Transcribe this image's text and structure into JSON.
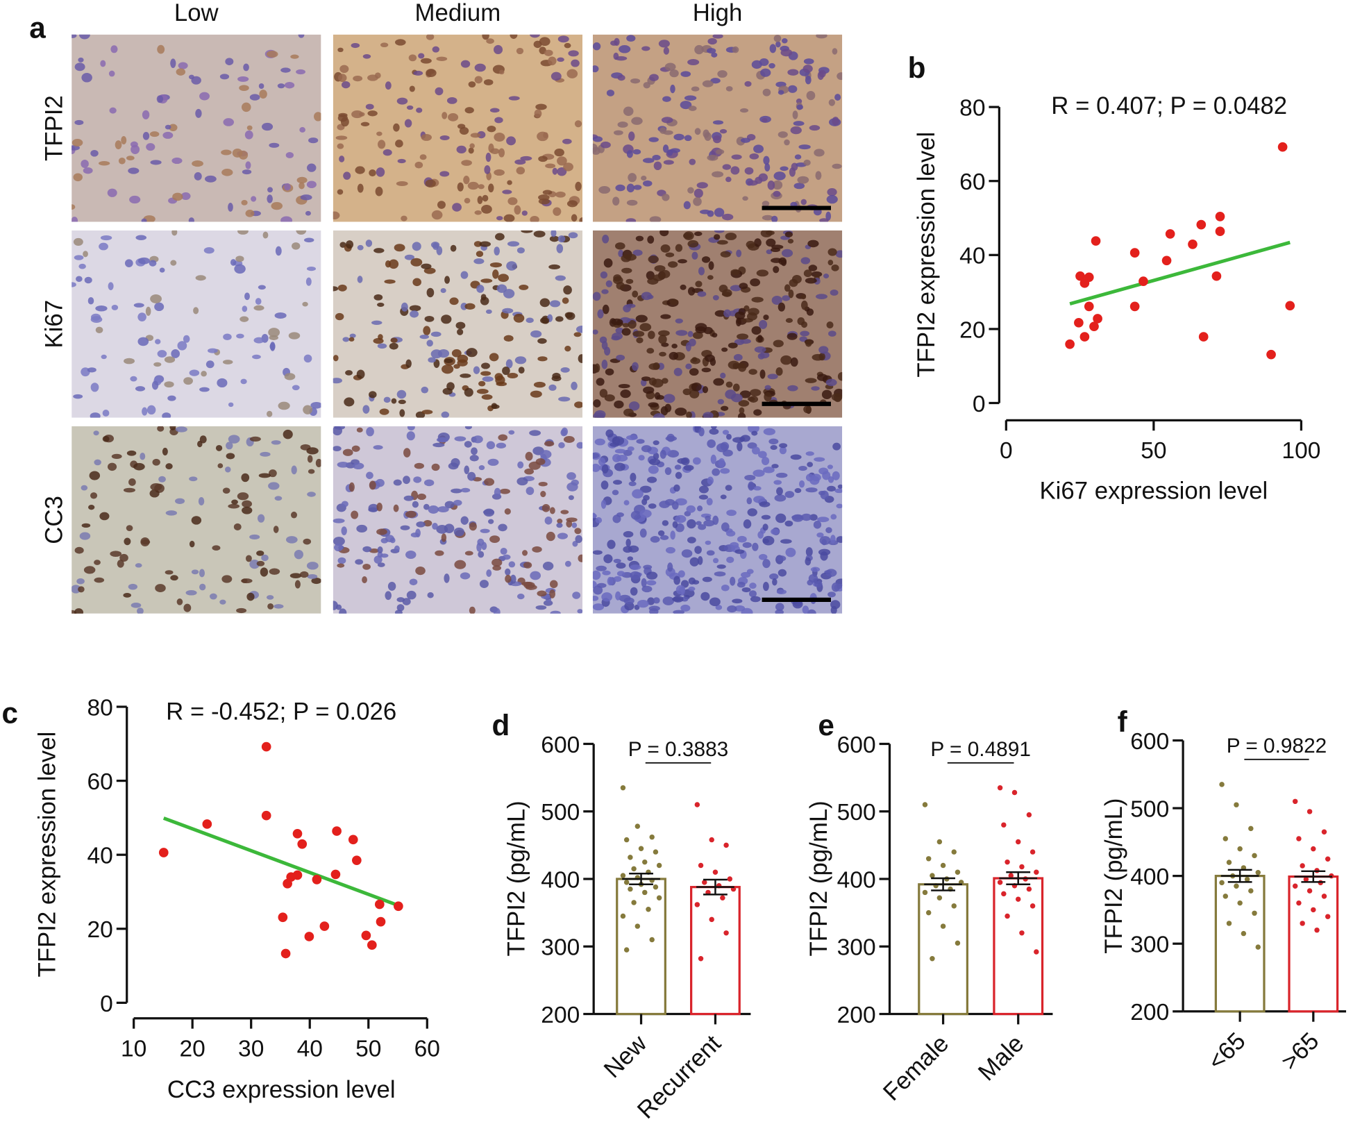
{
  "figure_a": {
    "label": "a",
    "columns": [
      "Low",
      "Medium",
      "High"
    ],
    "rows": [
      "TFPI2",
      "Ki67",
      "CC3"
    ]
  },
  "chart_data": [
    {
      "label": "b",
      "type": "scatter",
      "annotation": "R = 0.407; P = 0.0482",
      "x_label": "Ki67 expression level",
      "y_label": "TFPI2 expression level",
      "x": [
        93.7,
        72.5,
        72.5,
        66.1,
        63.2,
        55.6,
        54.4,
        71.3,
        46.5,
        43.6,
        43.6,
        30.4,
        28.1,
        25.1,
        26.6,
        28.1,
        31.0,
        24.6,
        26.6,
        29.8,
        21.6,
        66.9,
        89.8,
        96.2
      ],
      "y": [
        69.2,
        50.4,
        46.4,
        48.2,
        42.9,
        45.7,
        38.5,
        34.3,
        32.9,
        40.6,
        26.1,
        43.8,
        34.0,
        34.3,
        32.4,
        26.1,
        22.8,
        21.7,
        17.9,
        20.7,
        15.9,
        17.9,
        13.1,
        26.3
      ],
      "color": "#e3201c",
      "trend_line": {
        "x": [
          21.6,
          96.2
        ],
        "y": [
          26.8,
          43.4
        ],
        "color": "#3cb83a"
      },
      "xlim": [
        0,
        100
      ],
      "xticks": [
        0,
        50,
        100
      ],
      "ylim": [
        0,
        80
      ],
      "yticks": [
        0,
        20,
        40,
        60,
        80
      ]
    },
    {
      "label": "c",
      "type": "scatter",
      "annotation": "R = -0.452; P = 0.026",
      "x_label": "CC3 expression level",
      "y_label": "TFPI2 expression level",
      "x": [
        15.1,
        22.5,
        32.6,
        32.6,
        37.9,
        38.7,
        44.6,
        47.4,
        48.0,
        36.8,
        37.9,
        36.2,
        41.2,
        44.4,
        35.4,
        39.9,
        42.5,
        51.9,
        55.1,
        52.1,
        49.6,
        50.6,
        35.9
      ],
      "y": [
        40.6,
        48.3,
        69.2,
        50.6,
        45.7,
        42.9,
        46.4,
        44.1,
        38.5,
        34.0,
        34.5,
        32.2,
        33.3,
        34.7,
        23.1,
        17.9,
        20.7,
        26.6,
        26.1,
        21.9,
        18.2,
        15.6,
        13.3
      ],
      "color": "#e3201c",
      "trend_line": {
        "x": [
          15.1,
          55.1
        ],
        "y": [
          49.9,
          26.3
        ],
        "color": "#3cb83a"
      },
      "xlim": [
        10,
        60
      ],
      "xticks": [
        10,
        20,
        30,
        40,
        50,
        60
      ],
      "ylim": [
        0,
        80
      ],
      "yticks": [
        0,
        20,
        40,
        60,
        80
      ]
    },
    {
      "label": "d",
      "type": "bar",
      "annotation": "P = 0.3883",
      "y_label": "TFPI2 (pg/mL)",
      "categories": [
        "New",
        "Recurrent"
      ],
      "colors": [
        "#857a3c",
        "#d9242b"
      ],
      "values": [
        400,
        388
      ],
      "errors": [
        8,
        11
      ],
      "points": [
        [
          535,
          478,
          462,
          458,
          445,
          440,
          432,
          425,
          420,
          415,
          410,
          405,
          402,
          398,
          395,
          392,
          388,
          385,
          380,
          372,
          365,
          355,
          345,
          330,
          310,
          295
        ],
        [
          510,
          458,
          450,
          420,
          410,
          400,
          395,
          390,
          385,
          380,
          372,
          362,
          340,
          320,
          282
        ]
      ],
      "ylim": [
        200,
        600
      ],
      "yticks": [
        200,
        300,
        400,
        500,
        600
      ]
    },
    {
      "label": "e",
      "type": "bar",
      "annotation": "P = 0.4891",
      "y_label": "TFPI2 (pg/mL)",
      "categories": [
        "Female",
        "Male"
      ],
      "colors": [
        "#857a3c",
        "#d9242b"
      ],
      "values": [
        392,
        401
      ],
      "errors": [
        9,
        9
      ],
      "points": [
        [
          510,
          455,
          440,
          430,
          420,
          410,
          405,
          400,
          395,
          390,
          385,
          380,
          372,
          360,
          350,
          330,
          305,
          282
        ],
        [
          535,
          528,
          495,
          480,
          455,
          440,
          425,
          418,
          410,
          405,
          400,
          395,
          390,
          385,
          378,
          370,
          360,
          345,
          320,
          292
        ]
      ],
      "ylim": [
        200,
        600
      ],
      "yticks": [
        200,
        300,
        400,
        500,
        600
      ]
    },
    {
      "label": "f",
      "type": "bar",
      "annotation": "P = 0.9822",
      "y_label": "TFPI2 (pg/mL)",
      "categories": [
        "<65",
        ">65"
      ],
      "colors": [
        "#857a3c",
        "#d9242b"
      ],
      "values": [
        400,
        399
      ],
      "errors": [
        9,
        8
      ],
      "points": [
        [
          535,
          505,
          470,
          455,
          440,
          430,
          420,
          412,
          405,
          400,
          395,
          390,
          385,
          378,
          370,
          360,
          345,
          330,
          315,
          295
        ],
        [
          510,
          495,
          465,
          455,
          440,
          425,
          415,
          408,
          400,
          395,
          390,
          385,
          378,
          370,
          360,
          350,
          340,
          330,
          320
        ]
      ],
      "ylim": [
        200,
        600
      ],
      "yticks": [
        200,
        300,
        400,
        500,
        600
      ]
    }
  ]
}
